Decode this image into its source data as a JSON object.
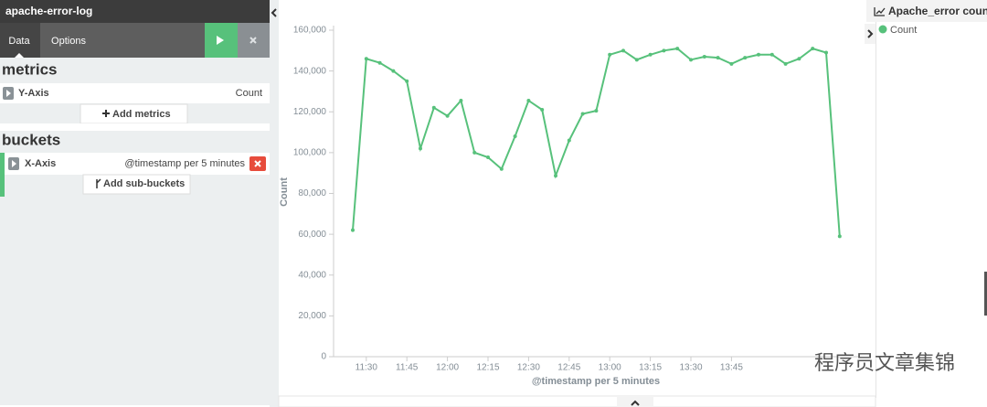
{
  "sidebar": {
    "title": "apache-error-log",
    "tabs": [
      "Data",
      "Options"
    ],
    "metrics": {
      "heading": "metrics",
      "axis": "Y-Axis",
      "agg": "Count",
      "add_button": "Add metrics"
    },
    "buckets": {
      "heading": "buckets",
      "axis": "X-Axis",
      "agg": "@timestamp per 5 minutes",
      "add_button": "Add sub-buckets"
    }
  },
  "legend": {
    "title": "Apache_error count"
  },
  "watermark": "程序员文章集锦",
  "chart_data": {
    "type": "line",
    "xlabel": "@timestamp per 5 minutes",
    "ylabel": "Count",
    "categories": [
      null,
      "11:30",
      null,
      null,
      "11:45",
      null,
      null,
      "12:00",
      null,
      null,
      "12:15",
      null,
      null,
      "12:30",
      null,
      null,
      "12:45",
      null,
      null,
      "13:00",
      null,
      null,
      "13:15",
      null,
      null,
      "13:30",
      null,
      null,
      "13:45",
      null,
      null,
      null,
      null,
      null,
      null,
      null,
      null
    ],
    "series": [
      {
        "name": "Count",
        "color": "#57c17b",
        "values": [
          62000,
          146000,
          144000,
          140000,
          135000,
          102000,
          122000,
          118000,
          125500,
          100000,
          97700,
          92000,
          108000,
          125500,
          121000,
          88700,
          106000,
          119000,
          120500,
          148000,
          150000,
          145500,
          148000,
          150000,
          151000,
          145500,
          147000,
          146500,
          143500,
          146500,
          148000,
          148000,
          143500,
          146000,
          151000,
          149000,
          59000
        ]
      }
    ],
    "ylim": [
      0,
      160000
    ],
    "yticks": [
      0,
      {
        "value": 20000,
        "label": "20,000"
      },
      {
        "value": 40000,
        "label": "40,000"
      },
      {
        "value": 60000,
        "label": "60,000"
      },
      {
        "value": 80000,
        "label": "80,000"
      },
      {
        "value": 100000,
        "label": "100,000"
      },
      {
        "value": 120000,
        "label": "120,000"
      },
      {
        "value": 140000,
        "label": "140,000"
      },
      {
        "value": 160000,
        "label": "160,000"
      }
    ]
  }
}
